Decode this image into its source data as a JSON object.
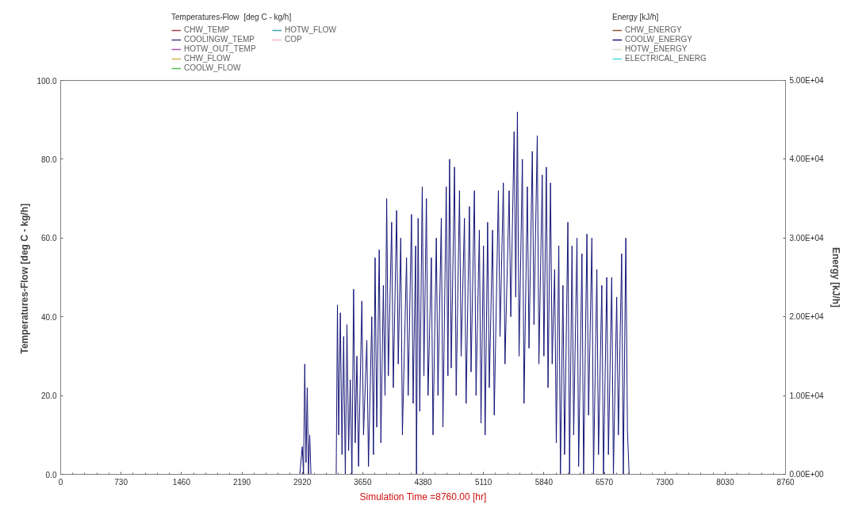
{
  "chart_data": {
    "type": "line",
    "xlabel": "Simulation Time =8760.00 [hr]",
    "ylabel": "Temperatures-Flow  [deg C - kg/h]",
    "y2label": "Energy [kJ/h]",
    "legend_title": "Temperatures-Flow  [deg C - kg/h]",
    "annotations": [
      "Energy [kJ/h]"
    ],
    "legend": "top",
    "grid": false,
    "xlim": [
      0,
      8760
    ],
    "xticks": [
      0,
      730,
      1460,
      2190,
      2920,
      3650,
      4380,
      5110,
      5840,
      6570,
      7300,
      8030,
      8760
    ],
    "ylim": [
      0,
      100
    ],
    "yticks": [
      {
        "value": 0,
        "label": "0.0"
      },
      {
        "value": 20,
        "label": "20.0"
      },
      {
        "value": 40,
        "label": "40.0"
      },
      {
        "value": 60,
        "label": "60.0"
      },
      {
        "value": 80,
        "label": "80.0"
      },
      {
        "value": 100,
        "label": "100.0"
      }
    ],
    "y2lim": [
      0,
      50000
    ],
    "y2ticks": [
      {
        "value": 0,
        "label": "0.00E+00"
      },
      {
        "value": 10000,
        "label": "1.00E+04"
      },
      {
        "value": 20000,
        "label": "2.00E+04"
      },
      {
        "value": 30000,
        "label": "3.00E+04"
      },
      {
        "value": 40000,
        "label": "4.00E+04"
      },
      {
        "value": 50000,
        "label": "5.00E+04"
      }
    ],
    "series": [
      {
        "name": "CHW_TEMP",
        "color": "#a0404a"
      },
      {
        "name": "COOLINGW_TEMP",
        "color": "#40407a"
      },
      {
        "name": "HOTW_OUT_TEMP",
        "color": "#b050b0"
      },
      {
        "name": "CHW_FLOW",
        "color": "#d0b050"
      },
      {
        "name": "COOLW_FLOW",
        "color": "#50c050"
      },
      {
        "name": "HOTW_FLOW",
        "color": "#40a0b0"
      },
      {
        "name": "COP",
        "color": "#f0b0d0"
      },
      {
        "name": "CHW_ENERGY",
        "color": "#905030",
        "axis": "y2"
      },
      {
        "name": "COOLW_ENERGY",
        "color": "#141478",
        "axis": "y2",
        "x": [
          2890,
          2920,
          2935,
          2950,
          2965,
          2980,
          2995,
          3010,
          3025,
          3330,
          3345,
          3360,
          3380,
          3400,
          3420,
          3440,
          3460,
          3480,
          3500,
          3520,
          3540,
          3560,
          3580,
          3600,
          3640,
          3660,
          3700,
          3720,
          3760,
          3780,
          3800,
          3820,
          3850,
          3870,
          3900,
          3920,
          3940,
          3960,
          4000,
          4020,
          4060,
          4080,
          4110,
          4130,
          4180,
          4200,
          4240,
          4260,
          4290,
          4300,
          4320,
          4340,
          4370,
          4390,
          4420,
          4440,
          4480,
          4500,
          4540,
          4560,
          4600,
          4620,
          4660,
          4680,
          4700,
          4720,
          4760,
          4780,
          4820,
          4840,
          4880,
          4900,
          4940,
          4960,
          5000,
          5020,
          5060,
          5080,
          5110,
          5130,
          5160,
          5180,
          5220,
          5240,
          5290,
          5310,
          5350,
          5370,
          5420,
          5440,
          5480,
          5500,
          5520,
          5540,
          5580,
          5600,
          5640,
          5660,
          5700,
          5720,
          5760,
          5780,
          5820,
          5840,
          5870,
          5890,
          5920,
          5940,
          5970,
          5990,
          6020,
          6040,
          6070,
          6090,
          6130,
          6150,
          6180,
          6200,
          6240,
          6260,
          6300,
          6320,
          6360,
          6380,
          6420,
          6440,
          6480,
          6500,
          6540,
          6560,
          6600,
          6620,
          6660,
          6680,
          6720,
          6740,
          6780,
          6800,
          6830,
          6850,
          6870
        ],
        "values": [
          0,
          3500,
          0,
          14000,
          1500,
          11000,
          0,
          5000,
          0,
          0,
          21500,
          5000,
          20500,
          2500,
          17500,
          0,
          19000,
          3000,
          12000,
          0,
          23500,
          4000,
          15000,
          1000,
          22000,
          5000,
          17000,
          1000,
          20000,
          2500,
          27500,
          6000,
          28500,
          4000,
          24000,
          10000,
          35000,
          12500,
          32000,
          11000,
          33500,
          14000,
          30000,
          5000,
          27500,
          10000,
          33000,
          9000,
          29000,
          0,
          32500,
          8000,
          36500,
          12500,
          35000,
          10000,
          27500,
          5000,
          30000,
          10000,
          32500,
          6000,
          36500,
          12500,
          40000,
          13500,
          39000,
          10000,
          36000,
          15000,
          32500,
          9000,
          34000,
          13000,
          36000,
          10000,
          31000,
          6500,
          29000,
          5000,
          32000,
          11000,
          31000,
          7500,
          36000,
          17500,
          37000,
          14000,
          36000,
          20000,
          43500,
          22500,
          46000,
          15000,
          40000,
          9000,
          36500,
          16000,
          41000,
          19000,
          43000,
          14000,
          38000,
          15000,
          39000,
          11000,
          37000,
          14000,
          26000,
          4000,
          29000,
          0,
          24000,
          2500,
          32000,
          0,
          29000,
          5000,
          30000,
          1000,
          28000,
          0,
          30500,
          7500,
          30000,
          0,
          26000,
          2500,
          24000,
          0,
          25000,
          2500,
          25000,
          0,
          22500,
          5000,
          28000,
          0,
          30000,
          5500,
          0
        ]
      },
      {
        "name": "HOTW_ENERGY",
        "color": "#e8ddd0",
        "axis": "y2"
      },
      {
        "name": "ELECTRICAL_ENERG",
        "color": "#50d8d8",
        "axis": "y2"
      }
    ]
  }
}
